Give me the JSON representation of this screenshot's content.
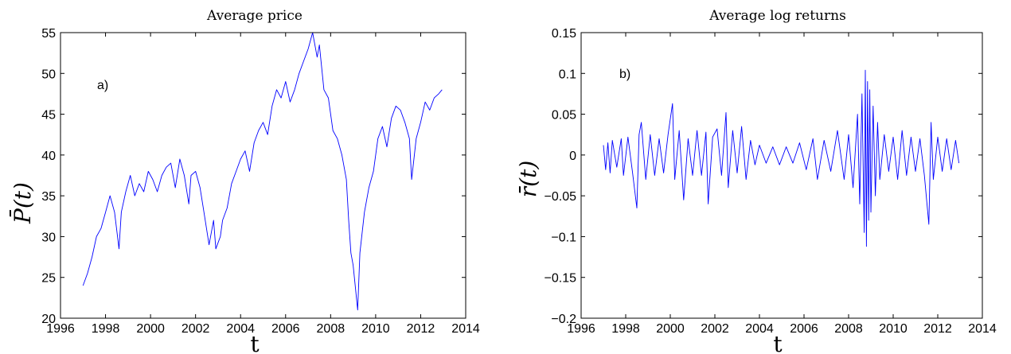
{
  "chart_data": [
    {
      "type": "line",
      "title": "Average price",
      "xlabel": "t",
      "ylabel": "P̄(t)",
      "panel_label": "a)",
      "xlim": [
        1996,
        2014
      ],
      "ylim": [
        20,
        55
      ],
      "xticks": [
        1996,
        1998,
        2000,
        2002,
        2004,
        2006,
        2008,
        2010,
        2012,
        2014
      ],
      "yticks": [
        20,
        25,
        30,
        35,
        40,
        45,
        50,
        55
      ],
      "ytick_labels": [
        "20",
        "25",
        "30",
        "35",
        "40",
        "45",
        "50",
        "55"
      ],
      "grid": false,
      "color": "#0000ff",
      "series": [
        {
          "x": [
            1997.0,
            1997.2,
            1997.4,
            1997.6,
            1997.8,
            1998.0,
            1998.2,
            1998.4,
            1998.6,
            1998.7,
            1998.9,
            1999.1,
            1999.3,
            1999.5,
            1999.7,
            1999.9,
            2000.1,
            2000.3,
            2000.5,
            2000.7,
            2000.9,
            2001.1,
            2001.3,
            2001.5,
            2001.7,
            2001.8,
            2002.0,
            2002.2,
            2002.4,
            2002.6,
            2002.8,
            2002.9,
            2003.1,
            2003.2,
            2003.4,
            2003.6,
            2003.8,
            2004.0,
            2004.2,
            2004.4,
            2004.6,
            2004.8,
            2005.0,
            2005.2,
            2005.4,
            2005.6,
            2005.8,
            2006.0,
            2006.2,
            2006.4,
            2006.6,
            2006.8,
            2007.0,
            2007.2,
            2007.4,
            2007.5,
            2007.7,
            2007.9,
            2008.1,
            2008.3,
            2008.5,
            2008.7,
            2008.8,
            2008.9,
            2009.0,
            2009.2,
            2009.3,
            2009.5,
            2009.7,
            2009.9,
            2010.1,
            2010.3,
            2010.5,
            2010.7,
            2010.9,
            2011.1,
            2011.3,
            2011.5,
            2011.6,
            2011.8,
            2012.0,
            2012.2,
            2012.4,
            2012.6,
            2012.8,
            2012.95
          ],
          "y": [
            24.0,
            25.5,
            27.5,
            30.0,
            31.0,
            33.0,
            35.0,
            33.0,
            28.5,
            33.0,
            35.5,
            37.5,
            35.0,
            36.5,
            35.5,
            38.0,
            37.0,
            35.5,
            37.5,
            38.5,
            39.0,
            36.0,
            39.5,
            37.5,
            34.0,
            37.5,
            38.0,
            36.0,
            32.5,
            29.0,
            32.0,
            28.5,
            30.0,
            32.0,
            33.5,
            36.5,
            38.0,
            39.5,
            40.5,
            38.0,
            41.5,
            43.0,
            44.0,
            42.5,
            46.0,
            48.0,
            47.0,
            49.0,
            46.5,
            48.0,
            50.0,
            51.5,
            53.0,
            55.0,
            52.0,
            53.5,
            48.0,
            47.0,
            43.0,
            42.0,
            40.0,
            37.0,
            32.0,
            28.0,
            26.5,
            21.0,
            28.0,
            33.0,
            36.0,
            38.0,
            42.0,
            43.5,
            41.0,
            44.5,
            46.0,
            45.5,
            44.0,
            42.0,
            37.0,
            42.0,
            44.0,
            46.5,
            45.5,
            47.0,
            47.5,
            48.0
          ]
        }
      ]
    },
    {
      "type": "line",
      "title": "Average log returns",
      "xlabel": "t",
      "ylabel": "r̄(t)",
      "panel_label": "b)",
      "xlim": [
        1996,
        2014
      ],
      "ylim": [
        -0.2,
        0.15
      ],
      "xticks": [
        1996,
        1998,
        2000,
        2002,
        2004,
        2006,
        2008,
        2010,
        2012,
        2014
      ],
      "yticks": [
        -0.2,
        -0.15,
        -0.1,
        -0.05,
        0,
        0.05,
        0.1,
        0.15
      ],
      "ytick_labels": [
        "−0.2",
        "−0.15",
        "−0.1",
        "−0.05",
        "0",
        "0.05",
        "0.1",
        "0.15"
      ],
      "grid": false,
      "color": "#0000ff",
      "series": [
        {
          "x": [
            1997.0,
            1997.1,
            1997.2,
            1997.3,
            1997.4,
            1997.6,
            1997.8,
            1997.9,
            1998.1,
            1998.3,
            1998.5,
            1998.6,
            1998.7,
            1998.9,
            1999.1,
            1999.3,
            1999.5,
            1999.7,
            1999.9,
            2000.1,
            2000.2,
            2000.4,
            2000.6,
            2000.8,
            2001.0,
            2001.2,
            2001.4,
            2001.6,
            2001.7,
            2001.9,
            2002.1,
            2002.3,
            2002.5,
            2002.6,
            2002.8,
            2003.0,
            2003.2,
            2003.4,
            2003.6,
            2003.8,
            2004.0,
            2004.3,
            2004.6,
            2004.9,
            2005.2,
            2005.5,
            2005.8,
            2006.1,
            2006.4,
            2006.6,
            2006.9,
            2007.2,
            2007.5,
            2007.8,
            2008.0,
            2008.2,
            2008.4,
            2008.5,
            2008.6,
            2008.7,
            2008.75,
            2008.8,
            2008.85,
            2008.9,
            2008.95,
            2009.0,
            2009.1,
            2009.2,
            2009.3,
            2009.4,
            2009.6,
            2009.8,
            2010.0,
            2010.2,
            2010.4,
            2010.6,
            2010.8,
            2011.0,
            2011.2,
            2011.4,
            2011.6,
            2011.7,
            2011.8,
            2012.0,
            2012.2,
            2012.4,
            2012.6,
            2012.8,
            2012.95
          ],
          "y": [
            0.012,
            -0.018,
            0.015,
            -0.022,
            0.018,
            -0.015,
            0.02,
            -0.025,
            0.022,
            -0.02,
            -0.065,
            0.025,
            0.04,
            -0.03,
            0.025,
            -0.025,
            0.02,
            -0.022,
            0.025,
            0.063,
            -0.03,
            0.03,
            -0.055,
            0.02,
            -0.025,
            0.03,
            -0.025,
            0.028,
            -0.06,
            0.022,
            0.032,
            -0.025,
            0.052,
            -0.04,
            0.03,
            -0.022,
            0.035,
            -0.03,
            0.018,
            -0.012,
            0.012,
            -0.01,
            0.01,
            -0.012,
            0.01,
            -0.01,
            0.015,
            -0.018,
            0.02,
            -0.03,
            0.018,
            -0.02,
            0.03,
            -0.03,
            0.025,
            -0.04,
            0.05,
            -0.06,
            0.075,
            -0.095,
            0.104,
            -0.112,
            0.09,
            -0.08,
            0.08,
            -0.07,
            0.06,
            -0.05,
            0.04,
            -0.03,
            0.025,
            -0.02,
            0.022,
            -0.03,
            0.03,
            -0.025,
            0.022,
            -0.02,
            0.02,
            -0.025,
            -0.085,
            0.04,
            -0.03,
            0.022,
            -0.02,
            0.02,
            -0.018,
            0.018,
            -0.01
          ]
        }
      ]
    }
  ]
}
